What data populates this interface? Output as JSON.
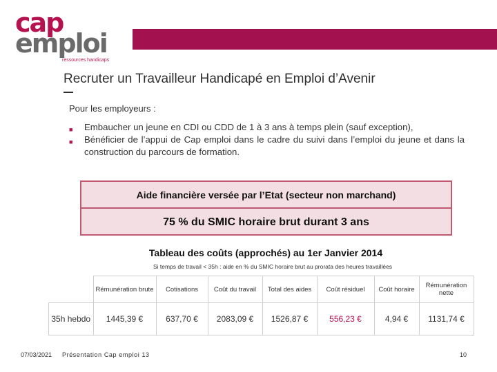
{
  "logo": {
    "cap": "cap",
    "emploi": "emploi",
    "tagline": "ressources handicaps"
  },
  "colors": {
    "brand": "#a3124e",
    "box_border": "#c0586f",
    "box_fill": "#f3dfe3",
    "accent_value": "#b5124f"
  },
  "title": "Recruter un Travailleur Handicapé en Emploi d’Avenir",
  "intro": "Pour les employeurs :",
  "bullets": [
    "Embaucher un jeune en CDI ou CDD de 1 à 3 ans à temps plein (sauf exception),",
    "Bénéficier de l’appui de Cap emploi dans le cadre du suivi dans l’emploi du jeune et dans la construction du parcours de formation."
  ],
  "bullet_icon": "square-bullet-icon",
  "aid_box": {
    "heading": "Aide financière versée par l’Etat (secteur non marchand)",
    "value": "75 % du SMIC horaire brut durant 3 ans"
  },
  "table": {
    "title": "Tableau des coûts (approchés) au 1er Janvier 2014",
    "note": "Si temps de travail < 35h : aide en % du SMIC horaire brut au prorata des heures travaillées",
    "headers": [
      "Rémunération brute",
      "Cotisations",
      "Coût du travail",
      "Total des aides",
      "Coût résiduel",
      "Coût horaire",
      "Rémunération nette"
    ],
    "row_label": "35h hebdo",
    "row_values": [
      "1445,39 €",
      "637,70 €",
      "2083,09 €",
      "1526,87 €",
      "556,23 €",
      "4,94 €",
      "1131,74 €"
    ]
  },
  "footer": {
    "date": "07/03/2021",
    "text": "Présentation Cap emploi 13",
    "page": "10"
  }
}
